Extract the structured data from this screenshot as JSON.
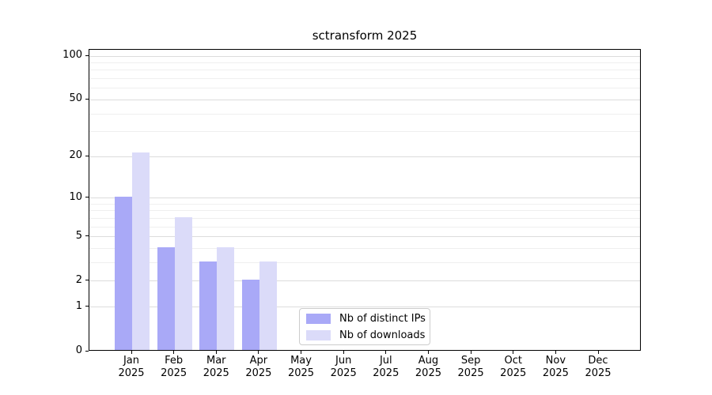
{
  "chart": {
    "title": "sctransform 2025"
  },
  "chart_data": {
    "type": "bar",
    "title": "sctransform 2025",
    "year_label": "2025",
    "categories": [
      "Jan",
      "Feb",
      "Mar",
      "Apr",
      "May",
      "Jun",
      "Jul",
      "Aug",
      "Sep",
      "Oct",
      "Nov",
      "Dec"
    ],
    "series": [
      {
        "name": "Nb of distinct IPs",
        "color": "#a9a9f7",
        "values": [
          10,
          4,
          3,
          2,
          0,
          0,
          0,
          0,
          0,
          0,
          0,
          0
        ]
      },
      {
        "name": "Nb of downloads",
        "color": "#dbdbf9",
        "values": [
          21,
          7,
          4,
          3,
          0,
          0,
          0,
          0,
          0,
          0,
          0,
          0
        ]
      }
    ],
    "xlabel": "",
    "ylabel": "",
    "yscale": "log1p",
    "ylim": [
      0,
      110
    ],
    "yticks": [
      0,
      1,
      2,
      5,
      10,
      20,
      50,
      100
    ],
    "minor_gridlines": [
      3,
      4,
      6,
      7,
      8,
      9,
      30,
      40,
      60,
      70,
      80,
      90
    ],
    "grid": "horizontal",
    "legend_position": "lower-center-inside",
    "axis_color": "#000000",
    "major_grid_color": "#dcdcdc",
    "minor_grid_color": "#efefef"
  }
}
